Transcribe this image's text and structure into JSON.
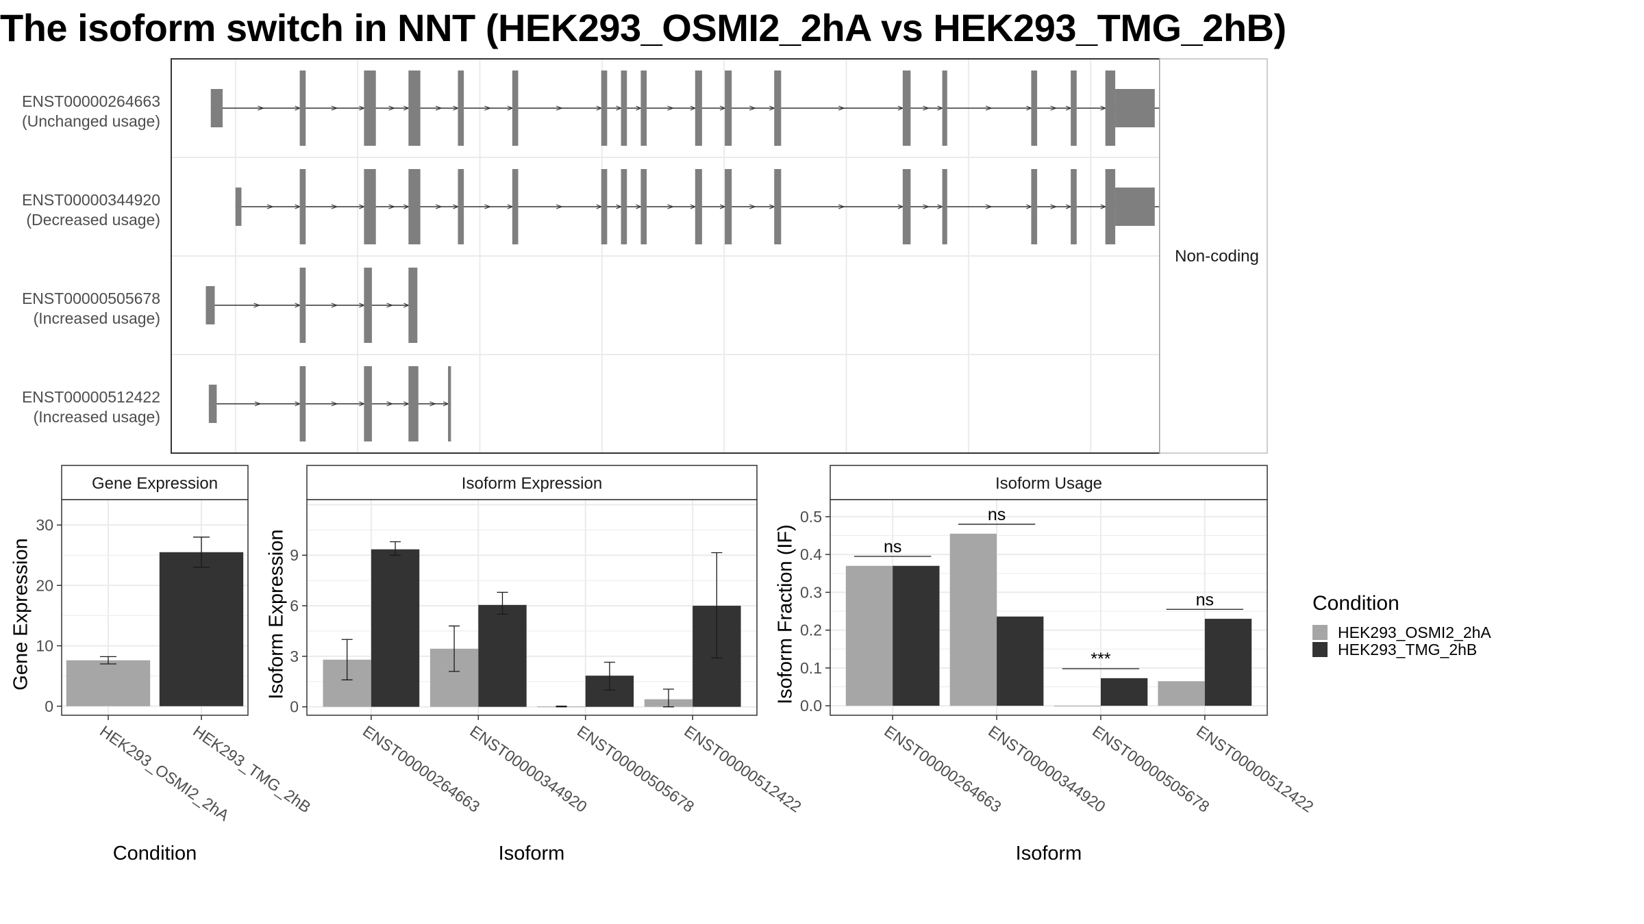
{
  "title": "The isoform switch in NNT (HEK293_OSMI2_2hA vs HEK293_TMG_2hB)",
  "colors": {
    "cond_a": "#a6a6a6",
    "cond_b": "#333333",
    "exon": "#7f7f7f",
    "grid": "#ebebeb",
    "panel_border": "#333333",
    "strip_bg": "#ffffff"
  },
  "chart_data": [
    {
      "type": "gene-structure",
      "strip_label": "Non-coding",
      "transcripts": [
        {
          "id": "ENST00000264663",
          "label": "(Unchanged usage)",
          "start": 0.04,
          "end": 1.08,
          "exons": [
            [
              0.04,
              0.052
            ],
            [
              0.13,
              0.136
            ],
            [
              0.195,
              0.207
            ],
            [
              0.24,
              0.252
            ],
            [
              0.29,
              0.296
            ],
            [
              0.345,
              0.351
            ],
            [
              0.435,
              0.441
            ],
            [
              0.455,
              0.461
            ],
            [
              0.475,
              0.481
            ],
            [
              0.53,
              0.537
            ],
            [
              0.56,
              0.567
            ],
            [
              0.61,
              0.617
            ],
            [
              0.74,
              0.748
            ],
            [
              0.78,
              0.785
            ],
            [
              0.87,
              0.876
            ],
            [
              0.91,
              0.916
            ],
            [
              0.945,
              0.955
            ],
            [
              0.955,
              0.995
            ]
          ],
          "utr_exons": [
            [
              0.04,
              0.052
            ],
            [
              0.955,
              0.995
            ]
          ]
        },
        {
          "id": "ENST00000344920",
          "label": "(Decreased usage)",
          "start": 0.065,
          "end": 1.08,
          "exons": [
            [
              0.065,
              0.071
            ],
            [
              0.13,
              0.136
            ],
            [
              0.195,
              0.207
            ],
            [
              0.24,
              0.252
            ],
            [
              0.29,
              0.296
            ],
            [
              0.345,
              0.351
            ],
            [
              0.435,
              0.441
            ],
            [
              0.455,
              0.461
            ],
            [
              0.475,
              0.481
            ],
            [
              0.53,
              0.537
            ],
            [
              0.56,
              0.567
            ],
            [
              0.61,
              0.617
            ],
            [
              0.74,
              0.748
            ],
            [
              0.78,
              0.785
            ],
            [
              0.87,
              0.876
            ],
            [
              0.91,
              0.916
            ],
            [
              0.945,
              0.955
            ],
            [
              0.955,
              0.995
            ]
          ],
          "utr_exons": [
            [
              0.065,
              0.071
            ],
            [
              0.955,
              0.995
            ]
          ]
        },
        {
          "id": "ENST00000505678",
          "label": "(Increased usage)",
          "start": 0.035,
          "end": 0.24,
          "exons": [
            [
              0.035,
              0.044
            ],
            [
              0.13,
              0.136
            ],
            [
              0.195,
              0.203
            ],
            [
              0.24,
              0.249
            ]
          ],
          "utr_exons": [
            [
              0.035,
              0.044
            ]
          ]
        },
        {
          "id": "ENST00000512422",
          "label": "(Increased usage)",
          "start": 0.038,
          "end": 0.283,
          "exons": [
            [
              0.038,
              0.046
            ],
            [
              0.13,
              0.136
            ],
            [
              0.195,
              0.203
            ],
            [
              0.24,
              0.25
            ],
            [
              0.28,
              0.283
            ]
          ],
          "utr_exons": [
            [
              0.038,
              0.046
            ]
          ]
        }
      ]
    },
    {
      "type": "bar",
      "strip_label": "Gene Expression",
      "xlabel": "Condition",
      "ylabel": "Gene Expression",
      "categories": [
        "HEK293_OSMI2_2hA",
        "HEK293_TMG_2hB"
      ],
      "values": [
        7.6,
        25.5
      ],
      "errors": [
        [
          7.0,
          8.2
        ],
        [
          23.0,
          28.0
        ]
      ],
      "ylim": [
        -1.5,
        34.2
      ],
      "yticks": [
        0,
        10,
        20,
        30
      ]
    },
    {
      "type": "bar",
      "strip_label": "Isoform Expression",
      "xlabel": "Isoform",
      "ylabel": "Isoform Expression",
      "categories": [
        "ENST00000264663",
        "ENST00000344920",
        "ENST00000505678",
        "ENST00000512422"
      ],
      "series": [
        {
          "name": "HEK293_OSMI2_2hA",
          "values": [
            2.8,
            3.45,
            0.02,
            0.45
          ],
          "errors": [
            [
              1.6,
              4.0
            ],
            [
              2.1,
              4.8
            ],
            [
              0.0,
              0.04
            ],
            [
              0.0,
              1.05
            ]
          ]
        },
        {
          "name": "HEK293_TMG_2hB",
          "values": [
            9.35,
            6.05,
            1.85,
            6.0
          ],
          "errors": [
            [
              9.0,
              9.8
            ],
            [
              5.5,
              6.8
            ],
            [
              1.0,
              2.65
            ],
            [
              2.9,
              9.15
            ]
          ]
        }
      ],
      "ylim": [
        -0.5,
        12.3
      ],
      "yticks": [
        0,
        3,
        6,
        9
      ]
    },
    {
      "type": "bar",
      "strip_label": "Isoform Usage",
      "xlabel": "Isoform",
      "ylabel": "Isoform Fraction (IF)",
      "categories": [
        "ENST00000264663",
        "ENST00000344920",
        "ENST00000505678",
        "ENST00000512422"
      ],
      "series": [
        {
          "name": "HEK293_OSMI2_2hA",
          "values": [
            0.37,
            0.455,
            0.0,
            0.065
          ]
        },
        {
          "name": "HEK293_TMG_2hB",
          "values": [
            0.37,
            0.236,
            0.073,
            0.23
          ]
        }
      ],
      "significance": [
        {
          "label": "ns",
          "y": 0.395
        },
        {
          "label": "ns",
          "y": 0.48
        },
        {
          "label": "***",
          "y": 0.098
        },
        {
          "label": "ns",
          "y": 0.255
        }
      ],
      "ylim": [
        -0.025,
        0.545
      ],
      "yticks": [
        0.0,
        0.1,
        0.2,
        0.3,
        0.4,
        0.5
      ]
    }
  ],
  "legend": {
    "title": "Condition",
    "entries": [
      "HEK293_OSMI2_2hA",
      "HEK293_TMG_2hB"
    ],
    "position": "right"
  }
}
